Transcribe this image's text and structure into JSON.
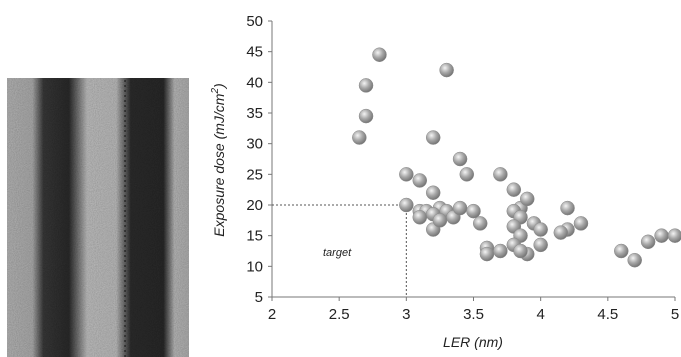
{
  "image_panel": {
    "description_icon": "sem-line-micrograph"
  },
  "chart_data": {
    "type": "scatter",
    "title": "",
    "xlabel": "LER (nm)",
    "ylabel_main": "Exposure dose (mJ/cm",
    "ylabel_sup": "2",
    "ylabel_end": ")",
    "xlim": [
      2,
      5
    ],
    "ylim": [
      5,
      50
    ],
    "xticks": [
      2,
      2.5,
      3,
      3.5,
      4,
      4.5,
      5
    ],
    "xtick_labels": [
      "2",
      "2.5",
      "3",
      "3.5",
      "4",
      "4.5",
      "5"
    ],
    "yticks": [
      5,
      10,
      15,
      20,
      25,
      30,
      35,
      40,
      45,
      50
    ],
    "ytick_labels": [
      "5",
      "10",
      "15",
      "20",
      "25",
      "30",
      "35",
      "40",
      "45",
      "50"
    ],
    "grid": false,
    "marker_color": "#a7a7a7",
    "target": {
      "x": 3.0,
      "y": 20,
      "label": "target"
    },
    "points": [
      [
        2.65,
        31
      ],
      [
        2.7,
        34.5
      ],
      [
        2.7,
        39.5
      ],
      [
        2.8,
        44.5
      ],
      [
        3.3,
        42
      ],
      [
        3.2,
        31
      ],
      [
        3.4,
        27.5
      ],
      [
        3.45,
        25
      ],
      [
        3.7,
        25
      ],
      [
        3.0,
        25
      ],
      [
        3.1,
        24
      ],
      [
        3.2,
        22
      ],
      [
        3.0,
        20
      ],
      [
        3.1,
        19
      ],
      [
        3.15,
        19
      ],
      [
        3.25,
        19.5
      ],
      [
        3.3,
        19
      ],
      [
        3.35,
        18
      ],
      [
        3.4,
        19.5
      ],
      [
        3.5,
        19
      ],
      [
        3.2,
        18.5
      ],
      [
        3.1,
        18
      ],
      [
        3.2,
        16
      ],
      [
        3.25,
        17.5
      ],
      [
        3.55,
        17
      ],
      [
        3.6,
        13
      ],
      [
        3.6,
        12
      ],
      [
        3.7,
        12.5
      ],
      [
        3.8,
        22.5
      ],
      [
        3.85,
        19.5
      ],
      [
        3.9,
        21
      ],
      [
        3.8,
        19
      ],
      [
        3.85,
        18
      ],
      [
        3.8,
        16.5
      ],
      [
        3.85,
        15
      ],
      [
        3.8,
        13.5
      ],
      [
        3.9,
        12
      ],
      [
        3.85,
        12.5
      ],
      [
        3.95,
        17
      ],
      [
        4.0,
        16
      ],
      [
        4.0,
        13.5
      ],
      [
        4.2,
        19.5
      ],
      [
        4.2,
        16
      ],
      [
        4.15,
        15.5
      ],
      [
        4.3,
        17
      ],
      [
        4.6,
        12.5
      ],
      [
        4.7,
        11
      ],
      [
        4.8,
        14
      ],
      [
        4.9,
        15
      ],
      [
        5.0,
        15
      ]
    ]
  }
}
